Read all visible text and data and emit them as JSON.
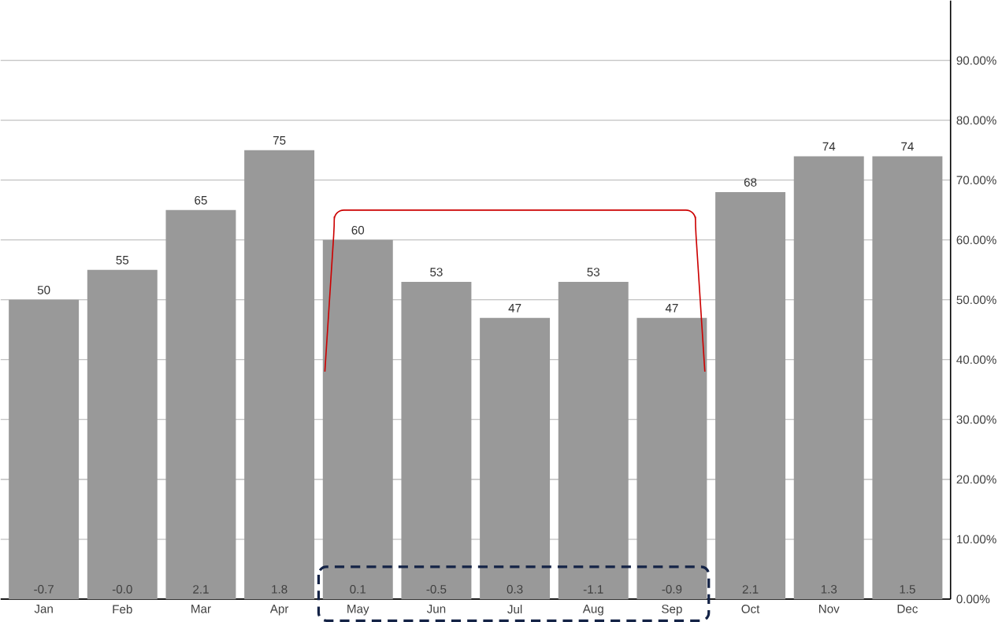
{
  "chart_data": {
    "type": "bar",
    "categories": [
      "Jan",
      "Feb",
      "Mar",
      "Apr",
      "May",
      "Jun",
      "Jul",
      "Aug",
      "Sep",
      "Oct",
      "Nov",
      "Dec"
    ],
    "values": [
      50,
      55,
      65,
      75,
      60,
      53,
      47,
      53,
      47,
      68,
      74,
      74
    ],
    "color": "#999999",
    "data_labels": true,
    "ylim": [
      0,
      100
    ],
    "yticks": [
      {
        "value": 0,
        "label": "0.00%"
      },
      {
        "value": 10,
        "label": "10.00%"
      },
      {
        "value": 20,
        "label": "20.00%"
      },
      {
        "value": 30,
        "label": "30.00%"
      },
      {
        "value": 40,
        "label": "40.00%"
      },
      {
        "value": 50,
        "label": "50.00%"
      },
      {
        "value": 60,
        "label": "60.00%"
      },
      {
        "value": 70,
        "label": "70.00%"
      },
      {
        "value": 80,
        "label": "80.00%"
      },
      {
        "value": 90,
        "label": "90.00%"
      }
    ],
    "grid": "y",
    "annotations": [
      "-0.7",
      "-0.0",
      "2.1",
      "1.8",
      "0.1",
      "-0.5",
      "0.3",
      "-1.1",
      "-0.9",
      "2.1",
      "1.3",
      "1.5"
    ]
  }
}
